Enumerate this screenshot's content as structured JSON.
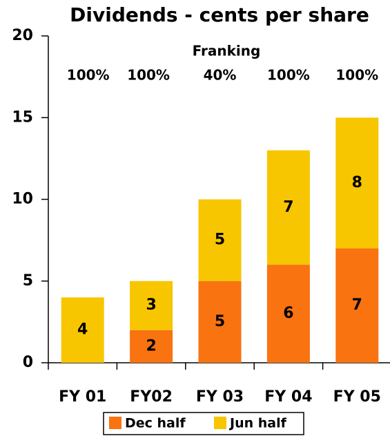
{
  "chart_data": {
    "type": "stacked_bar",
    "title": "Dividends - cents per share",
    "categories": [
      "FY 01",
      "FY02",
      "FY 03",
      "FY 04",
      "FY 05"
    ],
    "series": [
      {
        "name": "Dec half",
        "color": "#f97311",
        "values": [
          0,
          2,
          5,
          6,
          7
        ]
      },
      {
        "name": "Jun half",
        "color": "#f7c600",
        "values": [
          4,
          3,
          5,
          7,
          8
        ]
      }
    ],
    "annotation": {
      "title": "Franking",
      "labels": [
        "100%",
        "100%",
        "40%",
        "100%",
        "100%"
      ]
    },
    "ylim": [
      0,
      20
    ],
    "yticks": [
      0,
      5,
      10,
      15,
      20
    ],
    "grid": false,
    "legend": "bottom"
  }
}
